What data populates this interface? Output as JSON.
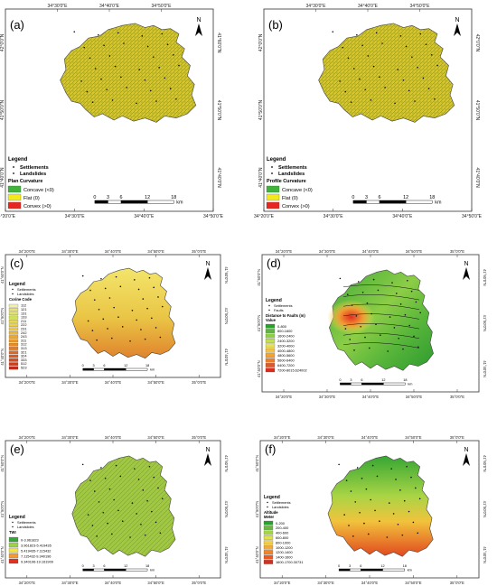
{
  "panels": [
    {
      "id": "a",
      "label": "(a)",
      "top_ticks": [
        "34°30'0\"E",
        "34°40'0\"E",
        "34°50'0\"E"
      ],
      "bottom_ticks": [
        "34°20'0\"E",
        "34°30'0\"E",
        "34°40'0\"E",
        "34°50'0\"E"
      ],
      "left_ticks": [
        "42°0'0\"N",
        "41°50'0\"N",
        "41°40'0\"N"
      ],
      "right_ticks": [
        "41°60'0\"N",
        "41°50'0\"N",
        "41°40'0\"N"
      ],
      "legend": {
        "title": "Legend",
        "point_items": [
          "Settlements",
          "Landslides"
        ],
        "subtitle": "Plan Curvature",
        "classes": [
          {
            "label": "Concave (<0)",
            "color": "#3fb33a"
          },
          {
            "label": "Flat (0)",
            "color": "#f2ea1e"
          },
          {
            "label": "Convex (>0)",
            "color": "#e8251f"
          }
        ]
      },
      "scale": {
        "ticks": [
          "0",
          "3",
          "6",
          "12",
          "18"
        ],
        "unit": "km"
      },
      "map_fill": "#c8b82a"
    },
    {
      "id": "b",
      "label": "(b)",
      "top_ticks": [
        "34°30'0\"E",
        "34°40'0\"E",
        "34°50'0\"E"
      ],
      "bottom_ticks": [
        "34°20'0\"E",
        "34°30'0\"E",
        "34°40'0\"E",
        "34°50'0\"E"
      ],
      "left_ticks": [
        "42°0'0\"N",
        "41°50'0\"N",
        "41°40'0\"N"
      ],
      "right_ticks": [
        "42°0'0\"N",
        "41°50'0\"N",
        "41°40'0\"N"
      ],
      "legend": {
        "title": "Legend",
        "point_items": [
          "Settlements",
          "Landslides"
        ],
        "subtitle": "Profile Curvature",
        "classes": [
          {
            "label": "Concave (<0)",
            "color": "#3fb33a"
          },
          {
            "label": "Flat (0)",
            "color": "#f2ea1e"
          },
          {
            "label": "Convex (>0)",
            "color": "#e8251f"
          }
        ]
      },
      "scale": {
        "ticks": [
          "0",
          "3",
          "6",
          "12",
          "18"
        ],
        "unit": "km"
      },
      "map_fill": "#cdbc2b"
    },
    {
      "id": "c",
      "label": "(c)",
      "top_ticks": [
        "34°20'0\"E",
        "34°30'0\"E",
        "34°40'0\"E",
        "34°50'0\"E",
        "35°0'0\"E"
      ],
      "bottom_ticks": [
        "34°20'0\"E",
        "34°30'0\"E",
        "34°40'0\"E",
        "34°50'0\"E",
        "35°0'0\"E"
      ],
      "left_ticks": [
        "41°60'0\"N",
        "41°50'0\"N",
        "41°40'0\"N"
      ],
      "right_ticks": [
        "41°60'0\"N",
        "41°50'0\"N",
        "41°40'0\"N"
      ],
      "legend": {
        "title": "Legend",
        "point_items": [
          "Settlements",
          "Landslides"
        ],
        "subtitle": "Corine Code",
        "classes": [
          {
            "label": "112",
            "color": "#f4f0a0"
          },
          {
            "label": "121",
            "color": "#e9e27a"
          },
          {
            "label": "131",
            "color": "#dfe36b"
          },
          {
            "label": "133",
            "color": "#cfe05a"
          },
          {
            "label": "211",
            "color": "#e6da4a"
          },
          {
            "label": "222",
            "color": "#f0d23a"
          },
          {
            "label": "231",
            "color": "#f3c634"
          },
          {
            "label": "242",
            "color": "#f2b82f"
          },
          {
            "label": "243",
            "color": "#f0a82a"
          },
          {
            "label": "311",
            "color": "#ec9a27"
          },
          {
            "label": "312",
            "color": "#e88a24"
          },
          {
            "label": "313",
            "color": "#e47a22"
          },
          {
            "label": "321",
            "color": "#e06a20"
          },
          {
            "label": "324",
            "color": "#dc5a1e"
          },
          {
            "label": "333",
            "color": "#d84a1c"
          },
          {
            "label": "512",
            "color": "#d43a1a"
          },
          {
            "label": "523",
            "color": "#c02a18"
          }
        ]
      },
      "scale": {
        "ticks": [
          "0",
          "3",
          "6",
          "12",
          "18"
        ],
        "unit": "km"
      }
    },
    {
      "id": "d",
      "label": "(d)",
      "top_ticks": [
        "34°20'0\"E",
        "34°30'0\"E",
        "34°40'0\"E",
        "34°50'0\"E",
        "35°0'0\"E"
      ],
      "bottom_ticks": [
        "34°20'0\"E",
        "34°30'0\"E",
        "34°40'0\"E",
        "34°50'0\"E",
        "35°0'0\"E"
      ],
      "left_ticks": [
        "41°60'0\"N",
        "41°50'0\"N",
        "41°40'0\"N"
      ],
      "right_ticks": [
        "41°60'0\"N",
        "41°50'0\"N",
        "41°40'0\"N"
      ],
      "legend": {
        "title": "Legend",
        "point_items": [
          "Settlements",
          "Faults"
        ],
        "subtitle": "Distance to Faults (m)",
        "subtitle2": "Value",
        "classes": [
          {
            "label": "0-800",
            "color": "#2ca02c"
          },
          {
            "label": "800-1600",
            "color": "#5cb83a"
          },
          {
            "label": "1600-2400",
            "color": "#8fce45"
          },
          {
            "label": "2400-3200",
            "color": "#c2df4e"
          },
          {
            "label": "3200-4000",
            "color": "#e7e24f"
          },
          {
            "label": "4000-4800",
            "color": "#f5c43e"
          },
          {
            "label": "4800-5600",
            "color": "#f3a233"
          },
          {
            "label": "5600-6400",
            "color": "#ee7d29"
          },
          {
            "label": "6400-7200",
            "color": "#e75522"
          },
          {
            "label": "7200-8015.624002",
            "color": "#dc2c1c"
          }
        ]
      },
      "scale": {
        "ticks": [
          "0",
          "3",
          "6",
          "12",
          "18"
        ],
        "unit": "km"
      }
    },
    {
      "id": "e",
      "label": "(e)",
      "top_ticks": [
        "34°20'0\"E",
        "34°30'0\"E",
        "34°40'0\"E",
        "34°50'0\"E",
        "35°0'0\"E"
      ],
      "bottom_ticks": [
        "34°20'0\"E",
        "34°30'0\"E",
        "34°40'0\"E",
        "34°50'0\"E",
        "35°0'0\"E"
      ],
      "left_ticks": [
        "41°60'0\"N",
        "41°50'0\"N",
        "41°40'0\"N"
      ],
      "right_ticks": [
        "41°60'0\"N",
        "41°50'0\"N",
        "41°40'0\"N"
      ],
      "legend": {
        "title": "Legend",
        "point_items": [
          "Settlements",
          "Landslides"
        ],
        "subtitle": "TWI",
        "classes": [
          {
            "label": "0-3.961823",
            "color": "#3aa33a"
          },
          {
            "label": "3.961823-5.419435",
            "color": "#9fd04a"
          },
          {
            "label": "5.419435-7.115432",
            "color": "#f0e44a"
          },
          {
            "label": "7.115432-9.340196",
            "color": "#f29a34"
          },
          {
            "label": "9.340196-19.161909",
            "color": "#e0301f"
          }
        ]
      },
      "scale": {
        "ticks": [
          "0",
          "3",
          "6",
          "12",
          "18"
        ],
        "unit": "km"
      }
    },
    {
      "id": "f",
      "label": "(f)",
      "top_ticks": [
        "34°20'0\"E",
        "34°30'0\"E",
        "34°40'0\"E",
        "34°50'0\"E",
        "35°0'0\"E"
      ],
      "bottom_ticks": [
        "34°20'0\"E",
        "34°30'0\"E",
        "34°40'0\"E",
        "34°50'0\"E",
        "35°0'0\"E"
      ],
      "left_ticks": [
        "41°60'0\"N",
        "41°50'0\"N",
        "41°40'0\"N"
      ],
      "right_ticks": [
        "41°60'0\"N",
        "41°50'0\"N",
        "41°40'0\"N"
      ],
      "legend": {
        "title": "Legend",
        "point_items": [
          "Settlements",
          "Landslides"
        ],
        "subtitle": "Altitude",
        "subtitle2": "Meter",
        "classes": [
          {
            "label": "0-200",
            "color": "#2ca02c"
          },
          {
            "label": "200-400",
            "color": "#66bb3a"
          },
          {
            "label": "400-600",
            "color": "#a5d445"
          },
          {
            "label": "600-800",
            "color": "#dfe24b"
          },
          {
            "label": "800-1000",
            "color": "#f5d03f"
          },
          {
            "label": "1000-1200",
            "color": "#f4ac35"
          },
          {
            "label": "1200-1400",
            "color": "#ef852b"
          },
          {
            "label": "1400-1600",
            "color": "#e85a23"
          },
          {
            "label": "1600-1700.30731",
            "color": "#d92c1d"
          }
        ]
      },
      "scale": {
        "ticks": [
          "0",
          "3",
          "6",
          "12",
          "18"
        ],
        "unit": "km"
      }
    }
  ],
  "north_label": "N",
  "icons": {
    "north_arrow": "north-arrow-icon",
    "settlement": "settlement-dot-icon"
  }
}
